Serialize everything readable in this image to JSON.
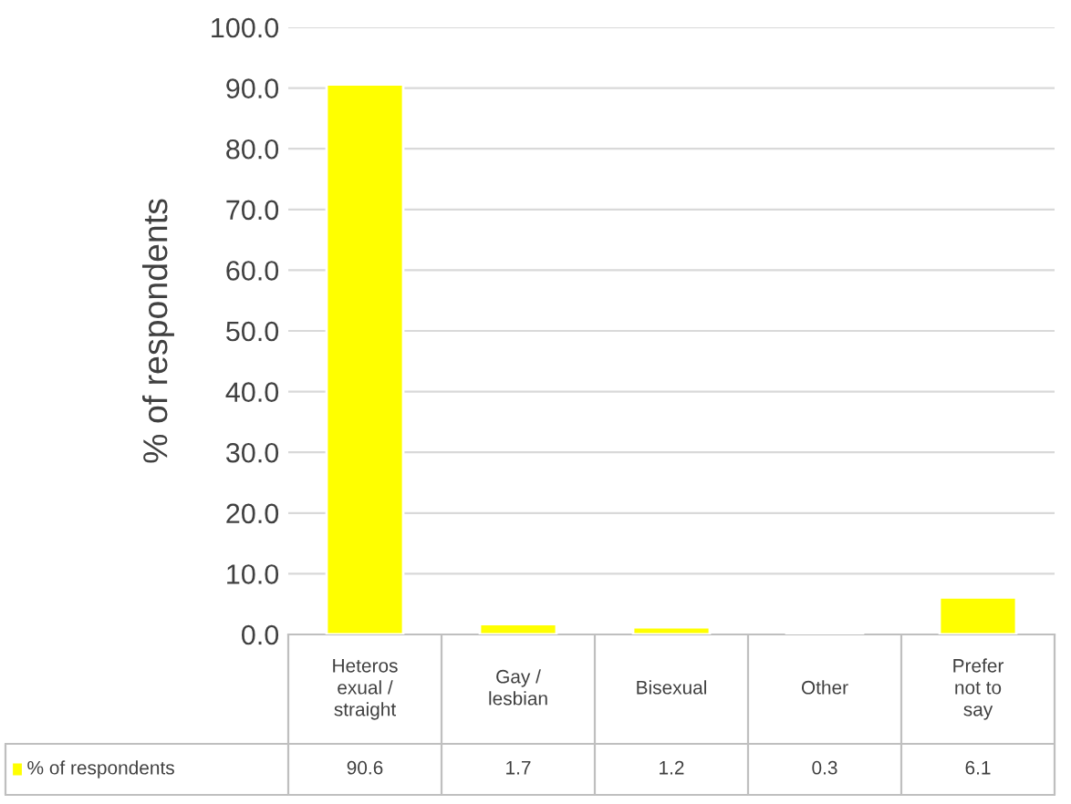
{
  "chart_data": {
    "type": "bar",
    "ylabel": "% of respondents",
    "categories": [
      "Heteros\nexual /\nstraight",
      "Gay /\nlesbian",
      "Bisexual",
      "Other",
      "Prefer\nnot to\nsay"
    ],
    "series": [
      {
        "name": "% of respondents",
        "color": "#ffff00",
        "values": [
          90.6,
          1.7,
          1.2,
          0.3,
          6.1
        ]
      }
    ],
    "ylim": [
      0,
      100
    ],
    "yticks": [
      {
        "value": 0,
        "label": "0.0"
      },
      {
        "value": 10,
        "label": "10.0"
      },
      {
        "value": 20,
        "label": "20.0"
      },
      {
        "value": 30,
        "label": "30.0"
      },
      {
        "value": 40,
        "label": "40.0"
      },
      {
        "value": 50,
        "label": "50.0"
      },
      {
        "value": 60,
        "label": "60.0"
      },
      {
        "value": 70,
        "label": "70.0"
      },
      {
        "value": 80,
        "label": "80.0"
      },
      {
        "value": 90,
        "label": "90.0"
      },
      {
        "value": 100,
        "label": "100.0"
      }
    ],
    "grid": "y",
    "legend": "bottom",
    "data_labels": true
  }
}
